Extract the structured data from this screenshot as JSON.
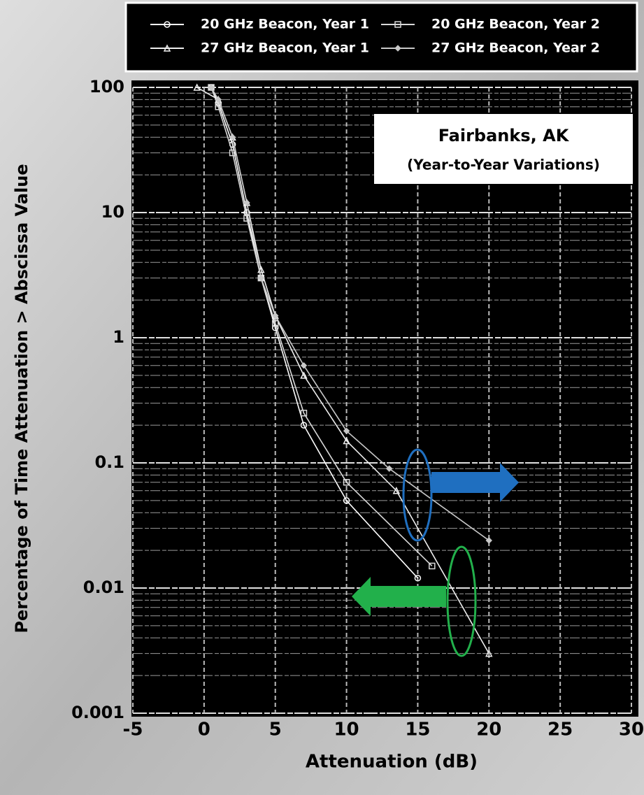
{
  "chart_data": {
    "type": "line",
    "title": "Fairbanks, AK",
    "subtitle": "(Year-to-Year Variations)",
    "x_label": "Attenuation (dB)",
    "y_label": "Percentage of Time Attenuation > Abscissa Value",
    "xlim": [
      -5,
      30
    ],
    "xticks": [
      -5,
      0,
      5,
      10,
      15,
      20,
      25,
      30
    ],
    "ylim": [
      0.001,
      100
    ],
    "yticks": [
      0.001,
      0.01,
      0.1,
      1,
      10,
      100
    ],
    "y_scale": "log",
    "grid": true,
    "legend": "top",
    "series": [
      {
        "name": "20 GHz Beacon, Year 1",
        "color": "#ffffff",
        "x": [
          0.5,
          1,
          2,
          3,
          4,
          5,
          7,
          10,
          15
        ],
        "values": [
          100,
          75,
          35,
          10,
          3,
          1.2,
          0.2,
          0.05,
          0.012
        ]
      },
      {
        "name": "20 GHz Beacon, Year 2",
        "color": "#d8d8d8",
        "x": [
          0.5,
          1,
          2,
          3,
          4,
          5,
          7,
          10,
          16
        ],
        "values": [
          100,
          70,
          30,
          9,
          3,
          1.3,
          0.25,
          0.07,
          0.015
        ]
      },
      {
        "name": "27 GHz Beacon, Year 1",
        "color": "#eeeeee",
        "x": [
          -0.5,
          1,
          2,
          3,
          4,
          5,
          7,
          10,
          13.5,
          20
        ],
        "values": [
          100,
          80,
          40,
          12,
          3.5,
          1.5,
          0.5,
          0.15,
          0.06,
          0.003
        ]
      },
      {
        "name": "27 GHz Beacon, Year 2",
        "color": "#c8c8c8",
        "x": [
          0.5,
          1,
          2,
          3,
          4,
          5,
          7,
          10,
          13,
          20
        ],
        "values": [
          100,
          80,
          40,
          12,
          3,
          1.5,
          0.6,
          0.18,
          0.09,
          0.024
        ]
      }
    ]
  }
}
